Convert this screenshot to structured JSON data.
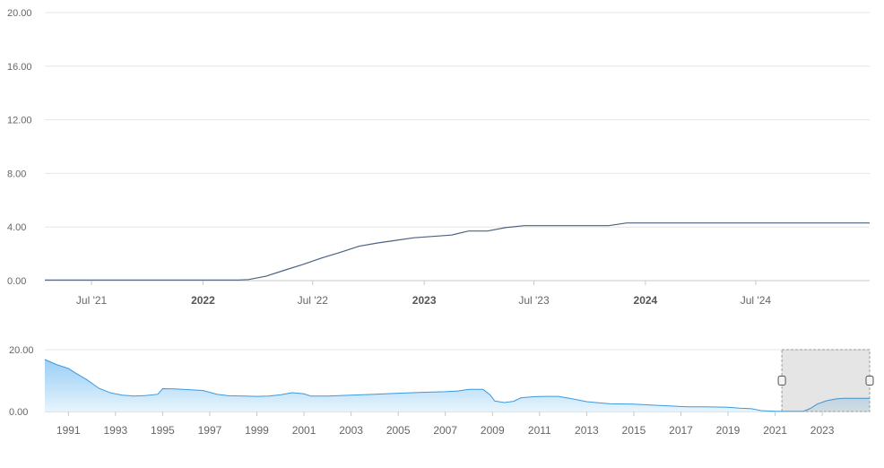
{
  "chart_data": {
    "type": "line",
    "main": {
      "x_range": [
        "2021-04-15",
        "2025-01-05"
      ],
      "y_range": [
        0,
        20
      ],
      "y_ticks": [
        "0.00",
        "4.00",
        "8.00",
        "12.00",
        "16.00",
        "20.00"
      ],
      "x_ticks": [
        {
          "label": "Jul '21",
          "date": "2021-07-01",
          "major": false
        },
        {
          "label": "2022",
          "date": "2022-01-01",
          "major": true
        },
        {
          "label": "Jul '22",
          "date": "2022-07-01",
          "major": false
        },
        {
          "label": "2023",
          "date": "2023-01-01",
          "major": true
        },
        {
          "label": "Jul '23",
          "date": "2023-07-01",
          "major": false
        },
        {
          "label": "2024",
          "date": "2024-01-01",
          "major": true
        },
        {
          "label": "Jul '24",
          "date": "2024-07-01",
          "major": false
        }
      ],
      "series": [
        {
          "color": "#4a6380",
          "points": [
            [
              "2021-04-15",
              0.05
            ],
            [
              "2022-03-01",
              0.05
            ],
            [
              "2022-03-17",
              0.08
            ],
            [
              "2022-04-15",
              0.33
            ],
            [
              "2022-05-15",
              0.77
            ],
            [
              "2022-06-15",
              1.21
            ],
            [
              "2022-07-15",
              1.68
            ],
            [
              "2022-08-15",
              2.1
            ],
            [
              "2022-09-15",
              2.56
            ],
            [
              "2022-10-15",
              2.8
            ],
            [
              "2022-11-15",
              3.0
            ],
            [
              "2022-12-15",
              3.2
            ],
            [
              "2023-01-15",
              3.3
            ],
            [
              "2023-02-15",
              3.4
            ],
            [
              "2023-03-15",
              3.7
            ],
            [
              "2023-04-15",
              3.7
            ],
            [
              "2023-05-15",
              3.95
            ],
            [
              "2023-06-15",
              4.1
            ],
            [
              "2023-07-15",
              4.1
            ],
            [
              "2023-11-01",
              4.1
            ],
            [
              "2023-12-01",
              4.3
            ],
            [
              "2025-01-05",
              4.3
            ]
          ]
        }
      ]
    },
    "navigator": {
      "x_range": [
        "1990-01-01",
        "2025-01-05"
      ],
      "y_range": [
        0,
        20
      ],
      "y_ticks": [
        "0.00",
        "20.00"
      ],
      "x_ticks": [
        "1991",
        "1993",
        "1995",
        "1997",
        "1999",
        "2001",
        "2003",
        "2005",
        "2007",
        "2009",
        "2011",
        "2013",
        "2015",
        "2017",
        "2019",
        "2021",
        "2023"
      ],
      "selection": [
        "2021-04-15",
        "2025-01-05"
      ],
      "color": "#3c9ae0",
      "points": [
        [
          1990.0,
          16.8
        ],
        [
          1990.5,
          15.2
        ],
        [
          1991.0,
          13.9
        ],
        [
          1991.3,
          12.5
        ],
        [
          1991.8,
          10.2
        ],
        [
          1992.3,
          7.5
        ],
        [
          1992.8,
          6.0
        ],
        [
          1993.3,
          5.3
        ],
        [
          1993.8,
          5.0
        ],
        [
          1994.3,
          5.2
        ],
        [
          1994.8,
          5.6
        ],
        [
          1995.0,
          7.4
        ],
        [
          1995.5,
          7.3
        ],
        [
          1996.0,
          7.1
        ],
        [
          1996.7,
          6.8
        ],
        [
          1997.3,
          5.6
        ],
        [
          1997.8,
          5.1
        ],
        [
          1998.5,
          5.0
        ],
        [
          1999.0,
          4.9
        ],
        [
          1999.5,
          5.0
        ],
        [
          2000.0,
          5.4
        ],
        [
          2000.5,
          6.1
        ],
        [
          2001.0,
          5.7
        ],
        [
          2001.3,
          5.0
        ],
        [
          2002.0,
          5.0
        ],
        [
          2003.0,
          5.3
        ],
        [
          2004.0,
          5.6
        ],
        [
          2005.0,
          5.9
        ],
        [
          2006.0,
          6.2
        ],
        [
          2007.0,
          6.4
        ],
        [
          2007.5,
          6.6
        ],
        [
          2008.0,
          7.2
        ],
        [
          2008.6,
          7.2
        ],
        [
          2008.9,
          5.4
        ],
        [
          2009.1,
          3.4
        ],
        [
          2009.5,
          2.9
        ],
        [
          2009.9,
          3.3
        ],
        [
          2010.2,
          4.4
        ],
        [
          2010.8,
          4.8
        ],
        [
          2011.3,
          4.9
        ],
        [
          2011.8,
          4.9
        ],
        [
          2012.4,
          4.1
        ],
        [
          2013.0,
          3.2
        ],
        [
          2013.5,
          2.8
        ],
        [
          2014.0,
          2.5
        ],
        [
          2015.0,
          2.4
        ],
        [
          2016.0,
          2.0
        ],
        [
          2016.8,
          1.7
        ],
        [
          2017.3,
          1.5
        ],
        [
          2018.0,
          1.5
        ],
        [
          2019.0,
          1.4
        ],
        [
          2019.5,
          1.1
        ],
        [
          2020.0,
          0.9
        ],
        [
          2020.4,
          0.3
        ],
        [
          2021.0,
          0.1
        ],
        [
          2022.2,
          0.1
        ],
        [
          2022.5,
          1.0
        ],
        [
          2022.8,
          2.5
        ],
        [
          2023.2,
          3.5
        ],
        [
          2023.6,
          4.1
        ],
        [
          2023.9,
          4.3
        ],
        [
          2025.0,
          4.3
        ]
      ]
    }
  }
}
